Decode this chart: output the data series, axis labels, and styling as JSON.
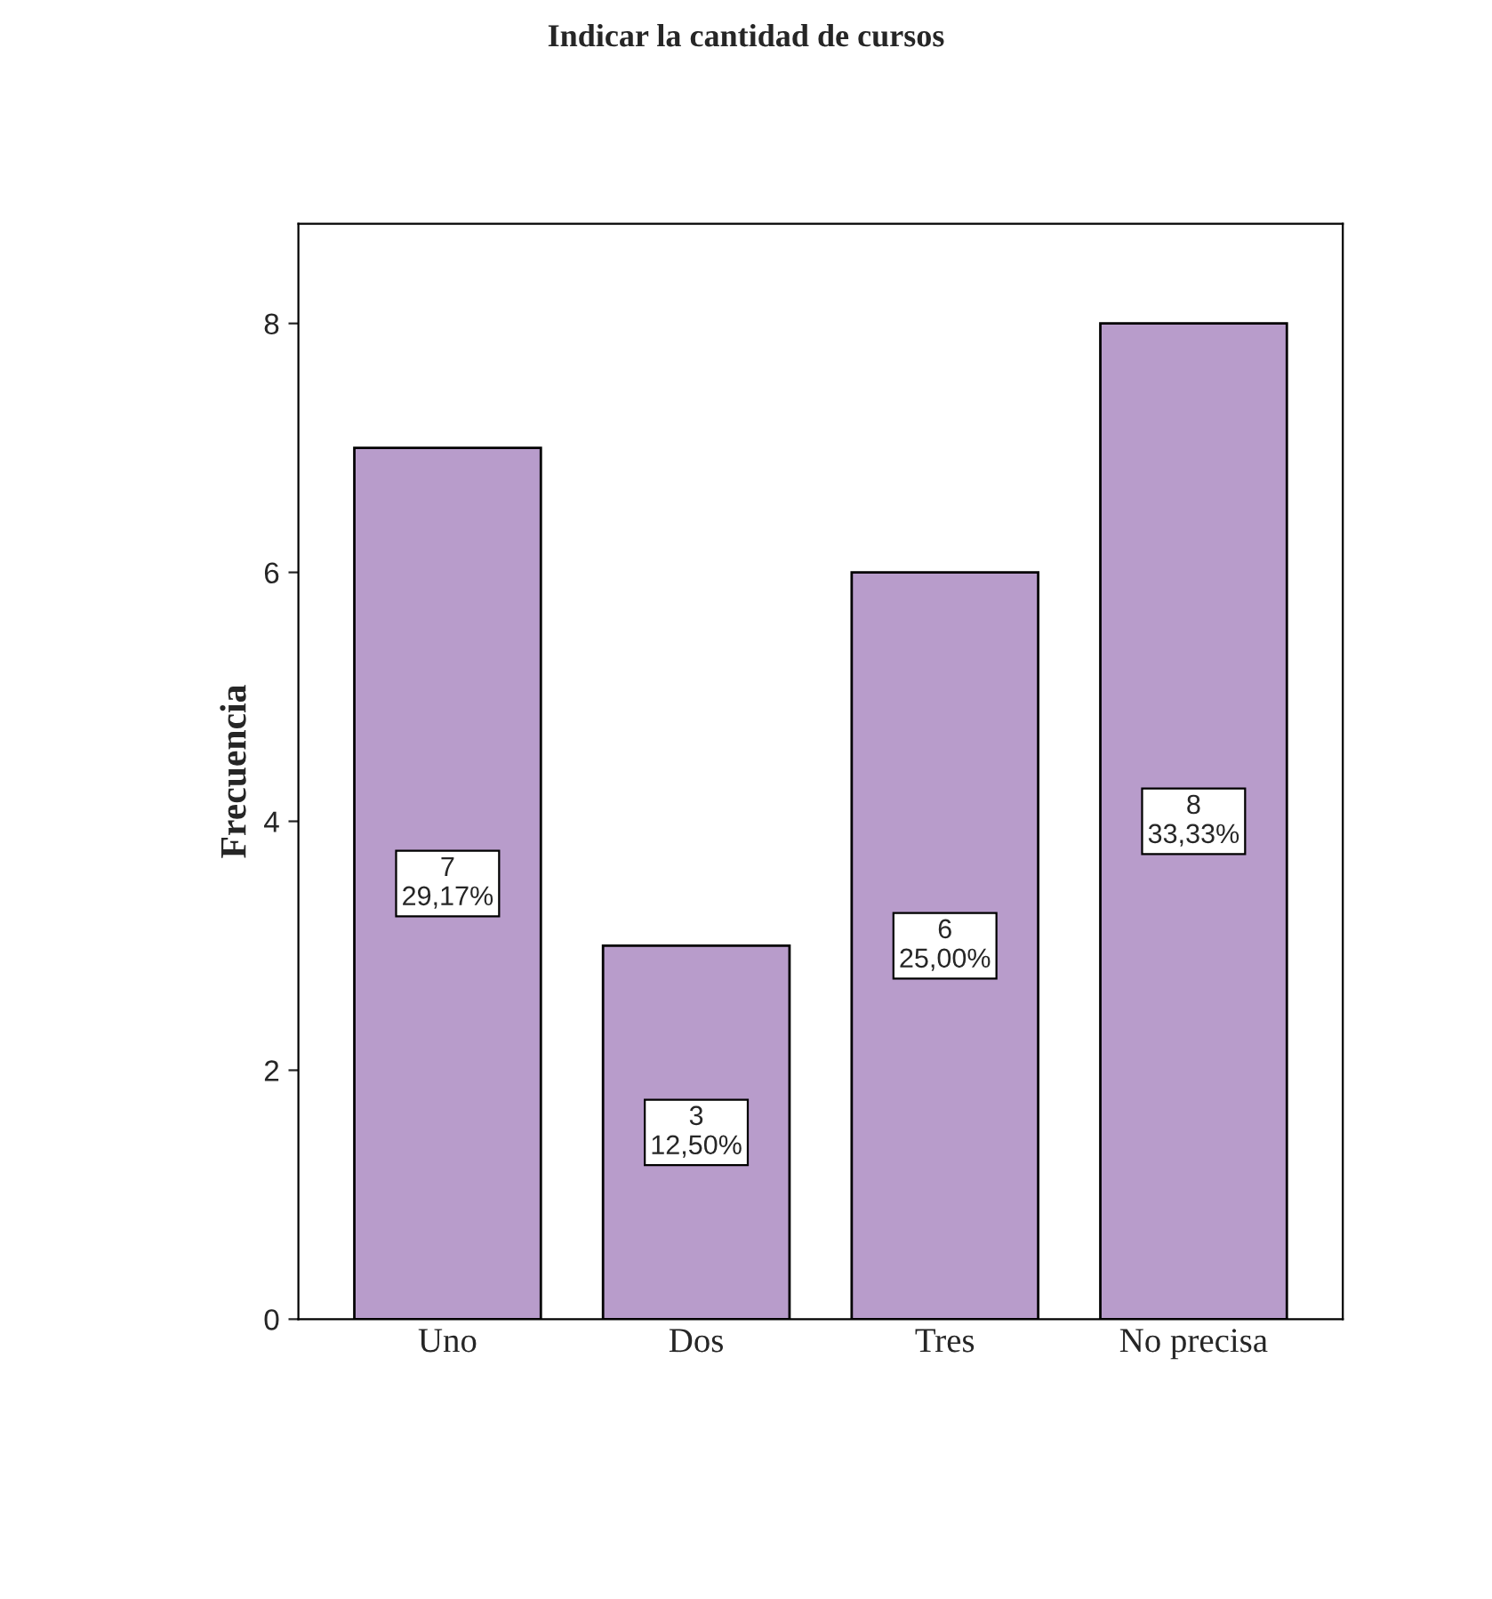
{
  "chart_data": {
    "type": "bar",
    "title": "Indicar la cantidad de cursos",
    "ylabel": "Frecuencia",
    "categories": [
      "Uno",
      "Dos",
      "Tres",
      "No precisa"
    ],
    "values": [
      7,
      3,
      6,
      8
    ],
    "value_labels": [
      "7\n29,17%",
      "3\n12,50%",
      "6\n25,00%",
      "8\n33,33%"
    ],
    "color": "#b89ccb",
    "ylim": [
      0,
      8.8
    ],
    "yticks": [
      0,
      2,
      4,
      6,
      8
    ],
    "grid": false,
    "legend": false
  }
}
